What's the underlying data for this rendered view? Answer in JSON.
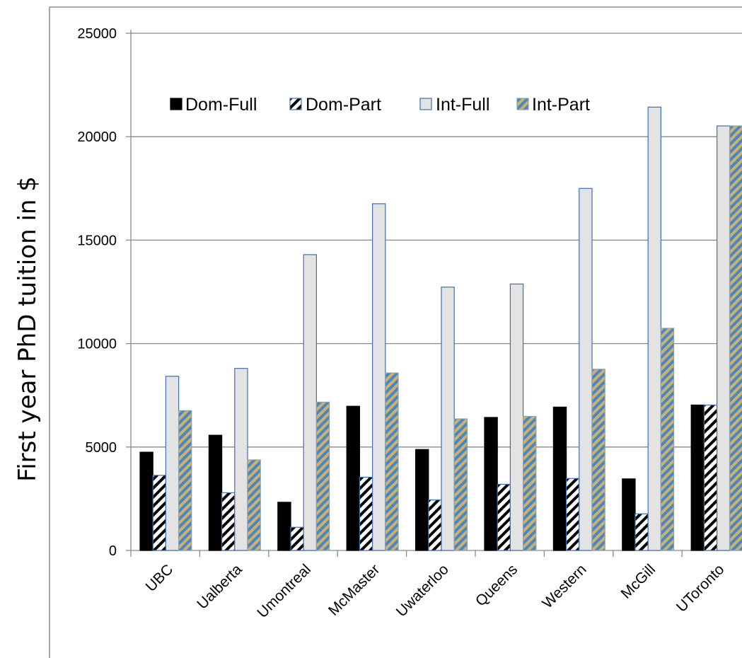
{
  "chart_data": {
    "type": "bar",
    "title": "",
    "xlabel": "",
    "ylabel": "First year PhD tuition in $",
    "ylim": [
      0,
      25000
    ],
    "yticks": [
      0,
      5000,
      10000,
      15000,
      20000,
      25000
    ],
    "grid": true,
    "legend_position": "top",
    "categories": [
      "UBC",
      "Ualberta",
      "Umontreal",
      "McMaster",
      "Uwaterloo",
      "Queens",
      "Western",
      "McGill",
      "UToronto"
    ],
    "series": [
      {
        "name": "Dom-Full",
        "values": [
          4750,
          5570,
          2330,
          6970,
          4880,
          6430,
          6930,
          3460,
          7030
        ],
        "fill": "#000000",
        "pattern": "solid"
      },
      {
        "name": "Dom-Part",
        "values": [
          3630,
          2790,
          1120,
          3540,
          2440,
          3200,
          3480,
          1770,
          7030
        ],
        "fill": "#ffffff",
        "pattern": "black-diagonal-stripes"
      },
      {
        "name": "Int-Full",
        "values": [
          8420,
          8800,
          14300,
          16760,
          12730,
          12880,
          17500,
          21430,
          20520
        ],
        "fill": "#e3e3e3",
        "stroke": "#3f6fae",
        "pattern": "solid"
      },
      {
        "name": "Int-Part",
        "values": [
          6760,
          4380,
          7170,
          8580,
          6360,
          6480,
          8760,
          10740,
          20520
        ],
        "fill": "#9eb1bd",
        "pattern": "blue-gold-diagonal-stripes"
      }
    ]
  },
  "colors": {
    "grid": "#8a8a8a",
    "axis": "#8a8a8a",
    "int_full_border": "#3f6fae",
    "stripe_blue": "#4f86b8",
    "stripe_gold": "#c9b27a"
  }
}
